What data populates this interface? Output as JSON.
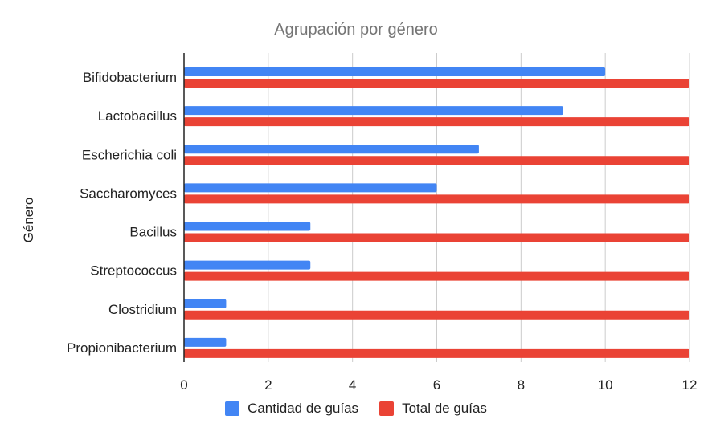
{
  "chart_data": {
    "type": "bar",
    "orientation": "horizontal",
    "title": "Agrupación por género",
    "xlabel": "",
    "ylabel": "Género",
    "categories": [
      "Bifidobacterium",
      "Lactobacillus",
      "Escherichia coli",
      "Saccharomyces",
      "Bacillus",
      "Streptococcus",
      "Clostridium",
      "Propionibacterium"
    ],
    "series": [
      {
        "name": "Cantidad de guías",
        "color": "#4285f4",
        "values": [
          10,
          9,
          7,
          6,
          3,
          3,
          1,
          1
        ]
      },
      {
        "name": "Total de guías",
        "color": "#ea4335",
        "values": [
          12,
          12,
          12,
          12,
          12,
          12,
          12,
          12
        ]
      }
    ],
    "xlim": [
      0,
      12
    ],
    "xticks": [
      "0",
      "2",
      "4",
      "6",
      "8",
      "10",
      "12"
    ],
    "grid": true,
    "legend_position": "bottom"
  }
}
